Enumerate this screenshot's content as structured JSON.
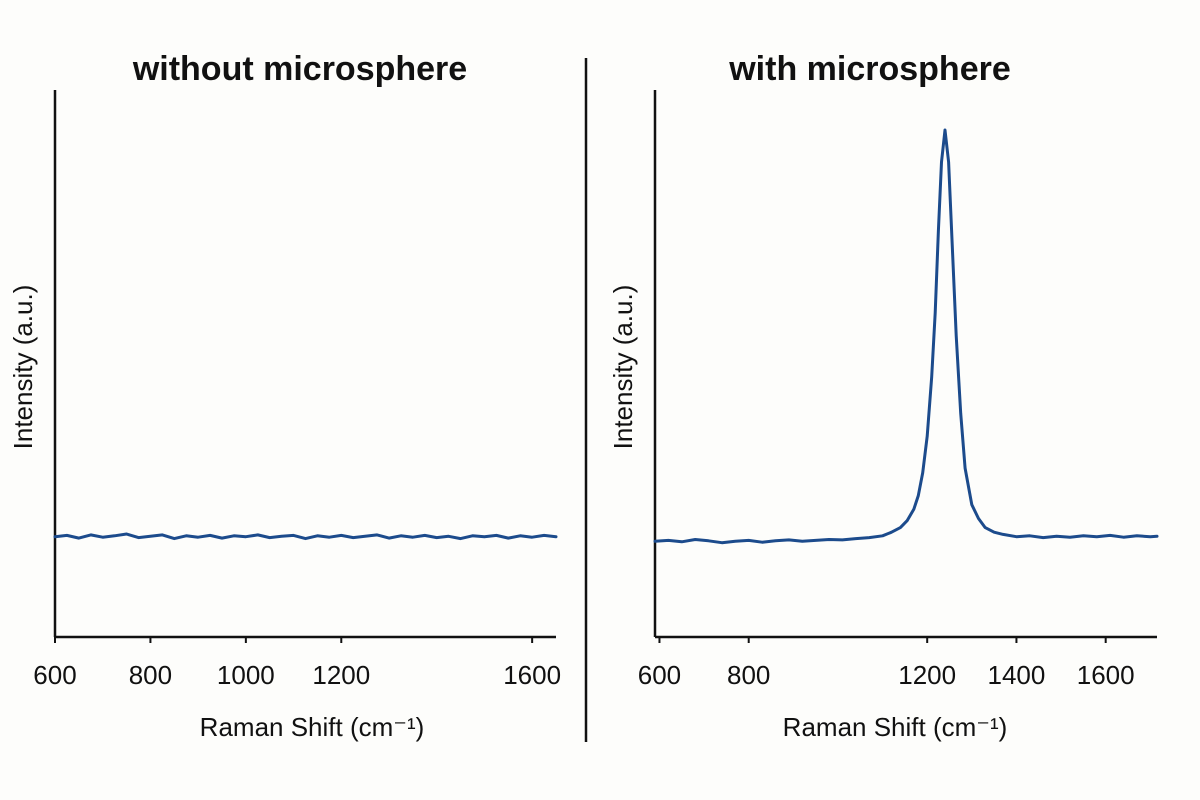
{
  "chart_data": [
    {
      "type": "line",
      "title": "without microsphere",
      "xlabel": "Raman Shift (cm⁻¹)",
      "ylabel": "Intensity (a.u.)",
      "xlim": [
        600,
        1650
      ],
      "ylim": [
        0,
        1
      ],
      "xticks": [
        600,
        800,
        1000,
        1200,
        1600
      ],
      "xtick_labels": [
        "600",
        "800",
        "1000",
        "1200",
        "1600"
      ],
      "grid": false,
      "series": [
        {
          "name": "without microsphere",
          "color": "#1c4b8c",
          "x": [
            600,
            625,
            650,
            675,
            700,
            725,
            750,
            775,
            800,
            825,
            850,
            875,
            900,
            925,
            950,
            975,
            1000,
            1025,
            1050,
            1075,
            1100,
            1125,
            1150,
            1175,
            1200,
            1225,
            1250,
            1275,
            1300,
            1325,
            1350,
            1375,
            1400,
            1425,
            1450,
            1475,
            1500,
            1525,
            1550,
            1575,
            1600,
            1625,
            1650
          ],
          "values": [
            0.11,
            0.113,
            0.107,
            0.114,
            0.109,
            0.112,
            0.116,
            0.108,
            0.111,
            0.114,
            0.106,
            0.112,
            0.109,
            0.113,
            0.107,
            0.112,
            0.11,
            0.114,
            0.108,
            0.111,
            0.113,
            0.106,
            0.112,
            0.109,
            0.113,
            0.108,
            0.111,
            0.114,
            0.107,
            0.112,
            0.109,
            0.113,
            0.108,
            0.111,
            0.106,
            0.112,
            0.11,
            0.113,
            0.107,
            0.112,
            0.109,
            0.113,
            0.11
          ]
        }
      ]
    },
    {
      "type": "line",
      "title": "with microsphere",
      "xlabel": "Raman Shift (cm⁻¹)",
      "ylabel": "Intensity (a.u.)",
      "xlim": [
        590,
        1715
      ],
      "ylim": [
        0,
        1
      ],
      "xticks": [
        600,
        800,
        1200,
        1400,
        1600
      ],
      "xtick_labels": [
        "600",
        "800",
        "1200",
        "1400",
        "1600"
      ],
      "grid": false,
      "series": [
        {
          "name": "with microsphere",
          "color": "#1c4b8c",
          "x": [
            590,
            620,
            650,
            680,
            710,
            740,
            770,
            800,
            830,
            860,
            890,
            920,
            950,
            980,
            1010,
            1040,
            1070,
            1100,
            1120,
            1140,
            1155,
            1170,
            1180,
            1190,
            1200,
            1210,
            1218,
            1225,
            1232,
            1240,
            1248,
            1256,
            1265,
            1275,
            1285,
            1300,
            1315,
            1330,
            1350,
            1370,
            1400,
            1430,
            1460,
            1490,
            1520,
            1550,
            1580,
            1610,
            1640,
            1670,
            1700,
            1715
          ],
          "values": [
            0.1,
            0.102,
            0.099,
            0.104,
            0.101,
            0.097,
            0.1,
            0.102,
            0.098,
            0.101,
            0.103,
            0.1,
            0.102,
            0.104,
            0.103,
            0.106,
            0.108,
            0.112,
            0.12,
            0.13,
            0.145,
            0.17,
            0.2,
            0.25,
            0.33,
            0.46,
            0.6,
            0.78,
            0.93,
            1.0,
            0.93,
            0.75,
            0.55,
            0.38,
            0.26,
            0.18,
            0.15,
            0.13,
            0.12,
            0.115,
            0.11,
            0.112,
            0.108,
            0.111,
            0.109,
            0.112,
            0.11,
            0.113,
            0.109,
            0.112,
            0.11,
            0.111
          ]
        }
      ]
    }
  ]
}
